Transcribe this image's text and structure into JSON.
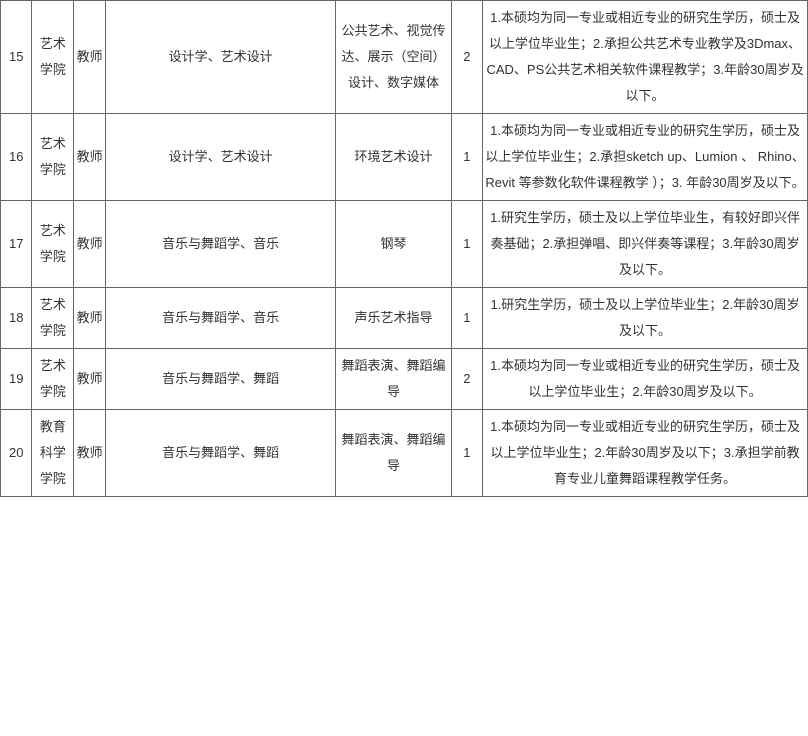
{
  "rows": [
    {
      "id": "15",
      "dept": "艺术学院",
      "pos": "教师",
      "major": "设计学、艺术设计",
      "dir": "公共艺术、视觉传达、展示（空间）设计、数字媒体",
      "num": "2",
      "req": "1.本硕均为同一专业或相近专业的研究生学历，硕士及以上学位毕业生；2.承担公共艺术专业教学及3Dmax、CAD、PS公共艺术相关软件课程教学；3.年龄30周岁及以下。"
    },
    {
      "id": "16",
      "dept": "艺术学院",
      "pos": "教师",
      "major": "设计学、艺术设计",
      "dir": "环境艺术设计",
      "num": "1",
      "req": "1.本硕均为同一专业或相近专业的研究生学历，硕士及以上学位毕业生；2.承担sketch up、Lumion  、 Rhino、Revit 等参数化软件课程教学 ）；3. 年龄30周岁及以下。"
    },
    {
      "id": "17",
      "dept": "艺术学院",
      "pos": "教师",
      "major": "音乐与舞蹈学、音乐",
      "dir": "钢琴",
      "num": "1",
      "req": "1.研究生学历，硕士及以上学位毕业生，有较好即兴伴奏基础；2.承担弹唱、即兴伴奏等课程；3.年龄30周岁及以下。"
    },
    {
      "id": "18",
      "dept": "艺术学院",
      "pos": "教师",
      "major": "音乐与舞蹈学、音乐",
      "dir": "声乐艺术指导",
      "num": "1",
      "req": "1.研究生学历，硕士及以上学位毕业生；2.年龄30周岁及以下。"
    },
    {
      "id": "19",
      "dept": "艺术学院",
      "pos": "教师",
      "major": "音乐与舞蹈学、舞蹈",
      "dir": "舞蹈表演、舞蹈编导",
      "num": "2",
      "req": "1.本硕均为同一专业或相近专业的研究生学历，硕士及以上学位毕业生；2.年龄30周岁及以下。"
    },
    {
      "id": "20",
      "dept": "教育科学学院",
      "pos": "教师",
      "major": "音乐与舞蹈学、舞蹈",
      "dir": "舞蹈表演、舞蹈编导",
      "num": "1",
      "req": "1.本硕均为同一专业或相近专业的研究生学历，硕士及以上学位毕业生；2.年龄30周岁及以下；3.承担学前教育专业儿童舞蹈课程教学任务。"
    }
  ]
}
